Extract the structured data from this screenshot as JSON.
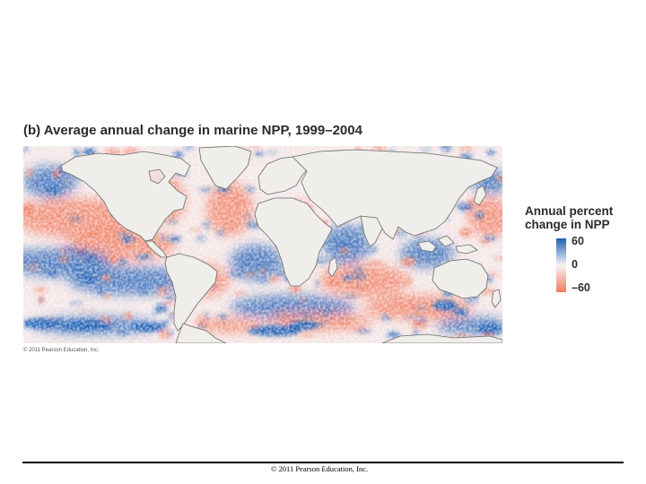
{
  "figure": {
    "title": "(b) Average annual change in marine NPP, 1999–2004",
    "inner_copyright": "© 2011 Pearson Education, Inc."
  },
  "legend": {
    "title_line1": "Annual percent",
    "title_line2": "change in NPP",
    "max_label": "60",
    "mid_label": "0",
    "min_label": "–60",
    "colors": {
      "positive": "#1f5fb5",
      "neutral": "#f7f4f4",
      "negative": "#f07a5e"
    }
  },
  "map": {
    "land_color": "#efeeea",
    "coast_color": "#6a6a6a",
    "ocean_base": "#f4e6e6"
  },
  "footer": {
    "copyright": "© 2011 Pearson Education, Inc."
  }
}
